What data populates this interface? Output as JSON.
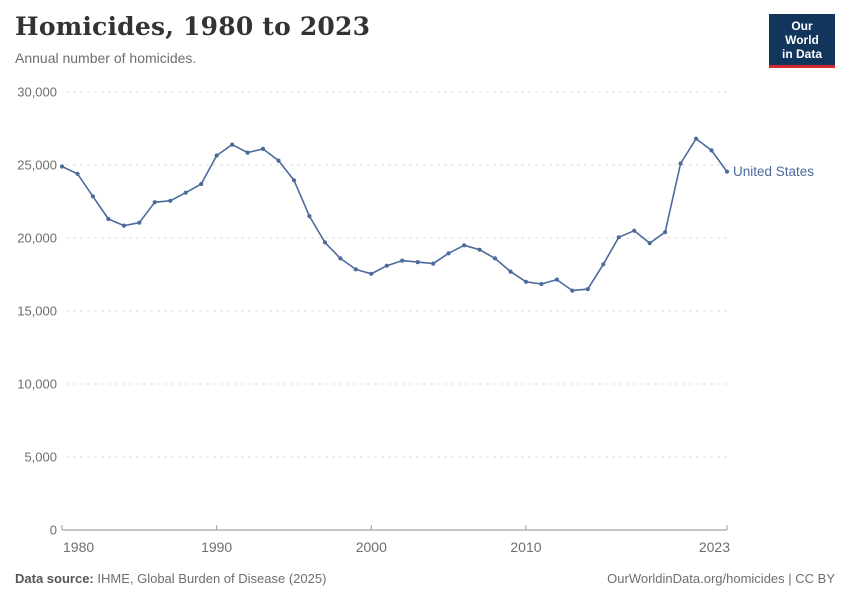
{
  "header": {
    "title": "Homicides, 1980 to 2023",
    "subtitle": "Annual number of homicides.",
    "logo": {
      "line1": "Our World",
      "line2": "in Data",
      "bg_color": "#12355c",
      "accent_color": "#d12b31"
    }
  },
  "chart_data": {
    "type": "line",
    "title": "Homicides, 1980 to 2023",
    "subtitle": "Annual number of homicides.",
    "xlabel": "",
    "ylabel": "",
    "ylim": [
      0,
      30000
    ],
    "y_ticks": [
      0,
      5000,
      10000,
      15000,
      20000,
      25000,
      30000
    ],
    "x_ticks": [
      1980,
      1990,
      2000,
      2010,
      2023
    ],
    "grid": "horizontal-dashed",
    "legend_position": "end-of-line-label",
    "x": [
      1980,
      1981,
      1982,
      1983,
      1984,
      1985,
      1986,
      1987,
      1988,
      1989,
      1990,
      1991,
      1992,
      1993,
      1994,
      1995,
      1996,
      1997,
      1998,
      1999,
      2000,
      2001,
      2002,
      2003,
      2004,
      2005,
      2006,
      2007,
      2008,
      2009,
      2010,
      2011,
      2012,
      2013,
      2014,
      2015,
      2016,
      2017,
      2018,
      2019,
      2020,
      2021,
      2022,
      2023
    ],
    "series": [
      {
        "name": "United States",
        "color": "#4C6A9C",
        "values": [
          24900,
          24400,
          22850,
          21300,
          20850,
          21050,
          22450,
          22550,
          23100,
          23700,
          25650,
          26400,
          25850,
          26100,
          25300,
          23950,
          21500,
          19700,
          18600,
          17850,
          17550,
          18100,
          18450,
          18350,
          18250,
          18950,
          19500,
          19200,
          18600,
          17700,
          17000,
          16850,
          17150,
          16400,
          16500,
          18200,
          20050,
          20500,
          19650,
          20400,
          25100,
          26800,
          26000,
          24550
        ]
      }
    ]
  },
  "footer": {
    "source_label": "Data source:",
    "source_text": " IHME, Global Burden of Disease (2025)",
    "right_text": "OurWorldinData.org/homicides | CC BY"
  }
}
